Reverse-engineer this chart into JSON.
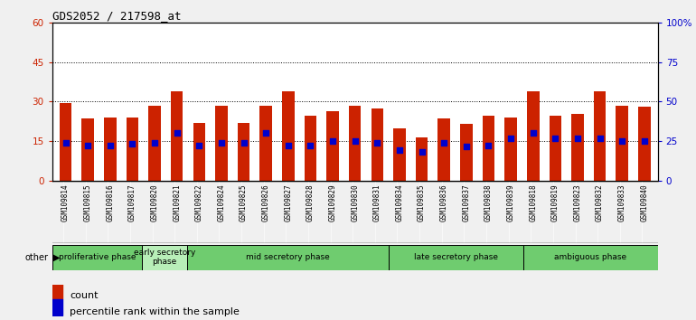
{
  "title": "GDS2052 / 217598_at",
  "samples": [
    "GSM109814",
    "GSM109815",
    "GSM109816",
    "GSM109817",
    "GSM109820",
    "GSM109821",
    "GSM109822",
    "GSM109824",
    "GSM109825",
    "GSM109826",
    "GSM109827",
    "GSM109828",
    "GSM109829",
    "GSM109830",
    "GSM109831",
    "GSM109834",
    "GSM109835",
    "GSM109836",
    "GSM109837",
    "GSM109838",
    "GSM109839",
    "GSM109818",
    "GSM109819",
    "GSM109823",
    "GSM109832",
    "GSM109833",
    "GSM109840"
  ],
  "counts": [
    29.5,
    23.5,
    24.0,
    24.0,
    28.5,
    34.0,
    22.0,
    28.5,
    22.0,
    28.5,
    34.0,
    24.5,
    26.5,
    28.5,
    27.5,
    20.0,
    16.5,
    23.5,
    21.5,
    24.5,
    24.0,
    34.0,
    24.5,
    25.5,
    34.0,
    28.5,
    28.0
  ],
  "percentile_ranks": [
    14.5,
    13.5,
    13.5,
    14.0,
    14.5,
    18.0,
    13.5,
    14.5,
    14.5,
    18.0,
    13.5,
    13.5,
    15.0,
    15.0,
    14.5,
    11.5,
    11.0,
    14.5,
    13.0,
    13.5,
    16.0,
    18.0,
    16.0,
    16.0,
    16.0,
    15.0,
    15.0
  ],
  "bar_color": "#cc2200",
  "dot_color": "#0000cc",
  "ylim_left": [
    0,
    60
  ],
  "ylim_right": [
    0,
    100
  ],
  "yticks_left": [
    0,
    15,
    30,
    45,
    60
  ],
  "ytick_labels_left": [
    "0",
    "15",
    "30",
    "45",
    "60"
  ],
  "yticks_right": [
    0,
    25,
    50,
    75,
    100
  ],
  "ytick_labels_right": [
    "0",
    "25",
    "50",
    "75",
    "100%"
  ],
  "grid_values": [
    15,
    30,
    45
  ],
  "phases": [
    {
      "label": "proliferative phase",
      "start": 0,
      "end": 4,
      "color": "#6fcc6f"
    },
    {
      "label": "early secretory\nphase",
      "start": 4,
      "end": 6,
      "color": "#b8eeb8"
    },
    {
      "label": "mid secretory phase",
      "start": 6,
      "end": 15,
      "color": "#6fcc6f"
    },
    {
      "label": "late secretory phase",
      "start": 15,
      "end": 21,
      "color": "#6fcc6f"
    },
    {
      "label": "ambiguous phase",
      "start": 21,
      "end": 27,
      "color": "#6fcc6f"
    }
  ],
  "other_label": "other",
  "legend_count_label": "count",
  "legend_percentile_label": "percentile rank within the sample",
  "tick_bg_color": "#c8c8c8",
  "fig_bg_color": "#f0f0f0",
  "plot_bg_color": "#ffffff"
}
